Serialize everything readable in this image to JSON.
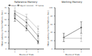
{
  "chart_data": [
    {
      "type": "line",
      "title": "Reference Memory",
      "x_label": "Blocks of Trials",
      "y_label": "Mean Latency to Find Platform (Sec)",
      "xlim": [
        0.5,
        3.5
      ],
      "ylim": [
        0,
        70
      ],
      "xticks": [
        1,
        2,
        3
      ],
      "yticks": [
        0,
        10,
        20,
        30,
        40,
        50,
        60,
        70
      ],
      "legend": "upper right",
      "x": [
        1,
        2,
        3
      ],
      "series": [
        {
          "name": "Sham",
          "color": "#444444",
          "marker": "circle",
          "line_style": "solid",
          "values": [
            52,
            35,
            12
          ],
          "errors": [
            5,
            4,
            3
          ]
        },
        {
          "name": "MgCl2 (1mmol)",
          "color": "#777777",
          "marker": "square",
          "line_style": "solid",
          "values": [
            60,
            45,
            22
          ],
          "errors": [
            5,
            5,
            4
          ]
        },
        {
          "name": "Saline",
          "color": "#aaaaaa",
          "marker": "triangle",
          "line_style": "solid",
          "values": [
            64,
            54,
            34
          ],
          "errors": [
            6,
            5,
            5
          ]
        }
      ]
    },
    {
      "type": "line",
      "title": "Working Memory",
      "x_label": "Blocks of Trials",
      "y_label": "Mean Latency to Find Platform (Sec)",
      "xlim": [
        0.5,
        2.5
      ],
      "ylim": [
        0,
        100
      ],
      "xticks": [
        1,
        2
      ],
      "yticks": [
        0,
        20,
        40,
        60,
        80,
        100
      ],
      "x": [
        1,
        2
      ],
      "series": [
        {
          "name": "Sham",
          "color": "#444444",
          "marker": "circle",
          "line_style": "solid",
          "values": [
            28,
            52
          ],
          "errors": [
            10,
            14
          ]
        },
        {
          "name": "Saline",
          "color": "#aaaaaa",
          "marker": "triangle",
          "line_style": "solid",
          "values": [
            26,
            26
          ],
          "errors": [
            8,
            8
          ]
        }
      ]
    }
  ]
}
